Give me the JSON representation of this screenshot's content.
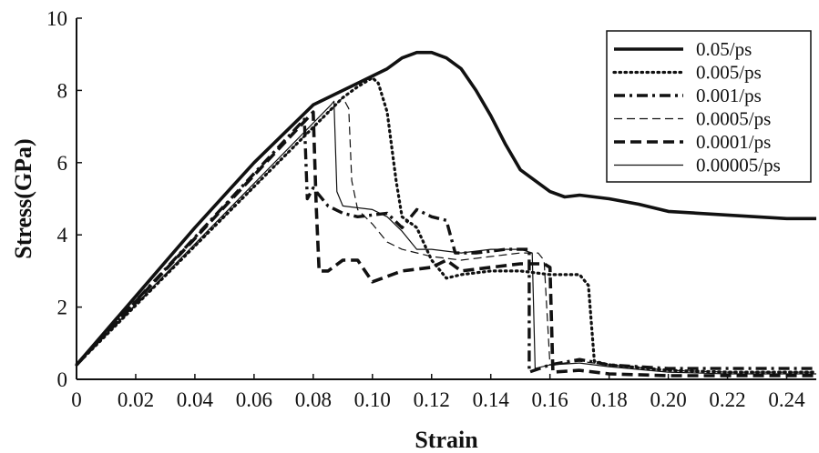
{
  "chart_data": {
    "type": "line",
    "xlabel": "Strain",
    "ylabel": "Stress(GPa)",
    "xlim": [
      0,
      0.25
    ],
    "ylim": [
      0,
      10
    ],
    "x_ticks": [
      "0",
      "0.02",
      "0.04",
      "0.06",
      "0.08",
      "0.10",
      "0.12",
      "0.14",
      "0.16",
      "0.18",
      "0.20",
      "0.22",
      "0.24"
    ],
    "y_ticks": [
      "0",
      "2",
      "4",
      "6",
      "8",
      "10"
    ],
    "grid": false,
    "legend_position": "top-right",
    "series": [
      {
        "name": "0.05/ps",
        "style": "solid-thick",
        "points": [
          [
            0,
            0.4
          ],
          [
            0.02,
            2.3
          ],
          [
            0.04,
            4.2
          ],
          [
            0.06,
            6.0
          ],
          [
            0.08,
            7.6
          ],
          [
            0.095,
            8.2
          ],
          [
            0.105,
            8.6
          ],
          [
            0.11,
            8.9
          ],
          [
            0.115,
            9.05
          ],
          [
            0.12,
            9.05
          ],
          [
            0.125,
            8.9
          ],
          [
            0.13,
            8.6
          ],
          [
            0.135,
            8.0
          ],
          [
            0.14,
            7.3
          ],
          [
            0.145,
            6.5
          ],
          [
            0.15,
            5.8
          ],
          [
            0.16,
            5.2
          ],
          [
            0.165,
            5.05
          ],
          [
            0.17,
            5.1
          ],
          [
            0.18,
            5.0
          ],
          [
            0.19,
            4.85
          ],
          [
            0.2,
            4.65
          ],
          [
            0.22,
            4.55
          ],
          [
            0.24,
            4.45
          ],
          [
            0.25,
            4.45
          ]
        ]
      },
      {
        "name": "0.005/ps",
        "style": "dotted",
        "points": [
          [
            0,
            0.4
          ],
          [
            0.09,
            7.8
          ],
          [
            0.095,
            8.1
          ],
          [
            0.1,
            8.35
          ],
          [
            0.102,
            8.2
          ],
          [
            0.105,
            7.4
          ],
          [
            0.108,
            5.5
          ],
          [
            0.11,
            4.5
          ],
          [
            0.115,
            4.2
          ],
          [
            0.12,
            3.3
          ],
          [
            0.125,
            2.8
          ],
          [
            0.13,
            2.9
          ],
          [
            0.14,
            3.0
          ],
          [
            0.15,
            3.0
          ],
          [
            0.16,
            2.9
          ],
          [
            0.17,
            2.9
          ],
          [
            0.173,
            2.6
          ],
          [
            0.175,
            0.5
          ],
          [
            0.18,
            0.4
          ],
          [
            0.2,
            0.25
          ],
          [
            0.22,
            0.2
          ],
          [
            0.25,
            0.2
          ]
        ]
      },
      {
        "name": "0.001/ps",
        "style": "dash-dot",
        "points": [
          [
            0,
            0.4
          ],
          [
            0.077,
            7.2
          ],
          [
            0.078,
            5.0
          ],
          [
            0.08,
            5.3
          ],
          [
            0.085,
            4.8
          ],
          [
            0.09,
            4.6
          ],
          [
            0.095,
            4.5
          ],
          [
            0.105,
            4.6
          ],
          [
            0.11,
            4.2
          ],
          [
            0.115,
            4.7
          ],
          [
            0.12,
            4.5
          ],
          [
            0.125,
            4.4
          ],
          [
            0.128,
            3.5
          ],
          [
            0.135,
            3.5
          ],
          [
            0.145,
            3.6
          ],
          [
            0.153,
            3.6
          ],
          [
            0.153,
            0.2
          ],
          [
            0.16,
            0.4
          ],
          [
            0.17,
            0.55
          ],
          [
            0.18,
            0.4
          ],
          [
            0.2,
            0.3
          ],
          [
            0.22,
            0.3
          ],
          [
            0.25,
            0.3
          ]
        ]
      },
      {
        "name": "0.0005/ps",
        "style": "dashed-thin",
        "points": [
          [
            0,
            0.4
          ],
          [
            0.09,
            7.8
          ],
          [
            0.092,
            7.5
          ],
          [
            0.093,
            5.5
          ],
          [
            0.095,
            4.7
          ],
          [
            0.1,
            4.3
          ],
          [
            0.105,
            3.8
          ],
          [
            0.11,
            3.6
          ],
          [
            0.12,
            3.4
          ],
          [
            0.13,
            3.3
          ],
          [
            0.14,
            3.4
          ],
          [
            0.15,
            3.5
          ],
          [
            0.156,
            3.5
          ],
          [
            0.158,
            3.3
          ],
          [
            0.16,
            0.4
          ],
          [
            0.17,
            0.5
          ],
          [
            0.18,
            0.4
          ],
          [
            0.2,
            0.25
          ],
          [
            0.22,
            0.2
          ],
          [
            0.25,
            0.2
          ]
        ]
      },
      {
        "name": "0.0001/ps",
        "style": "dashed-thick",
        "points": [
          [
            0,
            0.4
          ],
          [
            0.08,
            7.4
          ],
          [
            0.081,
            4.8
          ],
          [
            0.082,
            3.0
          ],
          [
            0.085,
            3.0
          ],
          [
            0.09,
            3.3
          ],
          [
            0.095,
            3.3
          ],
          [
            0.1,
            2.7
          ],
          [
            0.11,
            3.0
          ],
          [
            0.12,
            3.1
          ],
          [
            0.125,
            3.3
          ],
          [
            0.13,
            3.0
          ],
          [
            0.14,
            3.1
          ],
          [
            0.15,
            3.2
          ],
          [
            0.158,
            3.2
          ],
          [
            0.16,
            3.1
          ],
          [
            0.161,
            0.2
          ],
          [
            0.17,
            0.25
          ],
          [
            0.18,
            0.15
          ],
          [
            0.2,
            0.1
          ],
          [
            0.22,
            0.1
          ],
          [
            0.25,
            0.1
          ]
        ]
      },
      {
        "name": "0.00005/ps",
        "style": "solid-thin",
        "points": [
          [
            0,
            0.4
          ],
          [
            0.086,
            7.6
          ],
          [
            0.087,
            7.7
          ],
          [
            0.088,
            5.2
          ],
          [
            0.09,
            4.8
          ],
          [
            0.1,
            4.7
          ],
          [
            0.105,
            4.5
          ],
          [
            0.11,
            4.1
          ],
          [
            0.115,
            3.6
          ],
          [
            0.12,
            3.6
          ],
          [
            0.13,
            3.5
          ],
          [
            0.14,
            3.6
          ],
          [
            0.15,
            3.6
          ],
          [
            0.154,
            3.5
          ],
          [
            0.155,
            0.3
          ],
          [
            0.16,
            0.4
          ],
          [
            0.17,
            0.45
          ],
          [
            0.18,
            0.35
          ],
          [
            0.2,
            0.2
          ],
          [
            0.22,
            0.15
          ],
          [
            0.25,
            0.15
          ]
        ]
      }
    ]
  }
}
